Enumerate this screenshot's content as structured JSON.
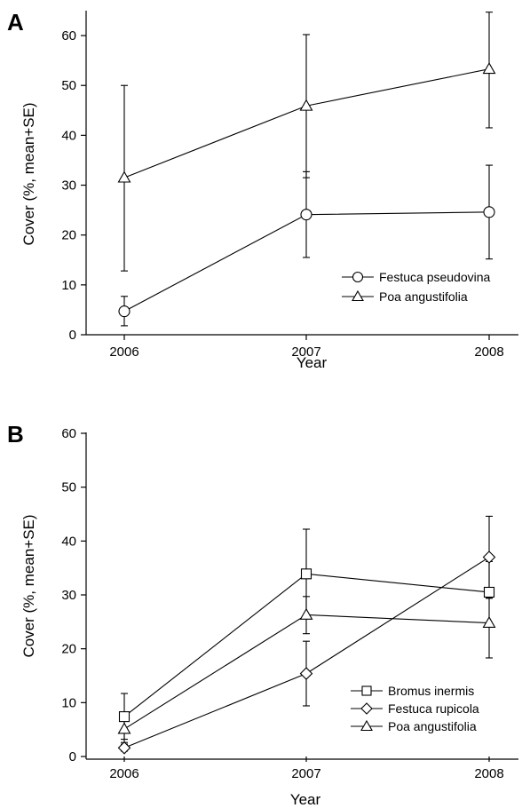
{
  "chart_data": [
    {
      "type": "line",
      "panel_label": "A",
      "xlabel": "Year",
      "ylabel": "Cover (%, mean+SE)",
      "categories": [
        "2006",
        "2007",
        "2008"
      ],
      "ylim": [
        0,
        65
      ],
      "yticks": [
        0,
        10,
        20,
        30,
        40,
        50,
        60
      ],
      "grid": false,
      "legend_position": "bottom-right",
      "series": [
        {
          "name": "Festuca pseudovina",
          "marker": "circle",
          "values": [
            4.7,
            24.1,
            24.6
          ],
          "error_low": [
            1.8,
            15.5,
            15.2
          ],
          "error_high": [
            7.7,
            32.7,
            34.0
          ]
        },
        {
          "name": "Poa angustifolia",
          "marker": "triangle",
          "values": [
            31.5,
            45.9,
            53.3
          ],
          "error_low": [
            12.8,
            31.5,
            41.5
          ],
          "error_high": [
            50.0,
            60.2,
            64.7
          ]
        }
      ]
    },
    {
      "type": "line",
      "panel_label": "B",
      "xlabel": "Year",
      "ylabel": "Cover (%, mean+SE)",
      "categories": [
        "2006",
        "2007",
        "2008"
      ],
      "ylim": [
        0,
        60
      ],
      "yticks": [
        0,
        10,
        20,
        30,
        40,
        50,
        60
      ],
      "grid": false,
      "legend_position": "bottom-right",
      "series": [
        {
          "name": "Bromus inermis",
          "marker": "square",
          "values": [
            7.4,
            33.9,
            30.5
          ],
          "error_low": [
            3.2,
            25.6,
            29.4
          ],
          "error_high": [
            11.7,
            42.2,
            36.2
          ]
        },
        {
          "name": "Festuca rupicola",
          "marker": "diamond",
          "values": [
            1.6,
            15.4,
            37.0
          ],
          "error_low": [
            1.0,
            9.4,
            29.4
          ],
          "error_high": [
            2.3,
            21.4,
            44.6
          ]
        },
        {
          "name": "Poa angustifolia",
          "marker": "triangle",
          "values": [
            5.1,
            26.3,
            24.8
          ],
          "error_low": [
            2.6,
            22.8,
            18.3
          ],
          "error_high": [
            7.6,
            29.7,
            29.4
          ]
        }
      ]
    }
  ]
}
